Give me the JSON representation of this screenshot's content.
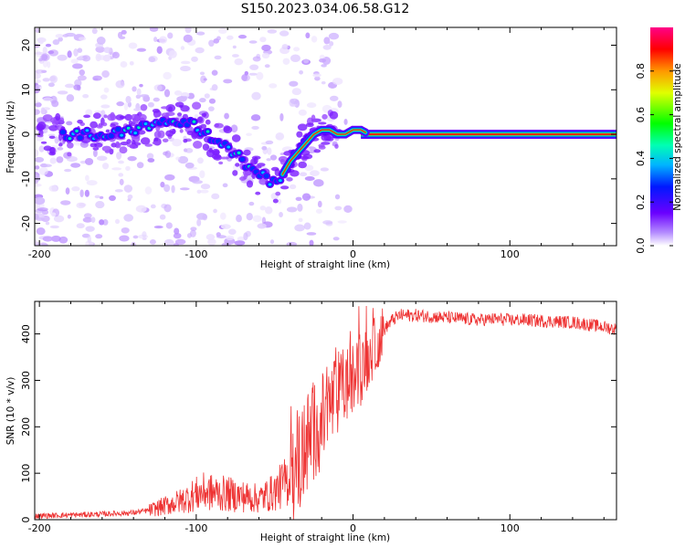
{
  "title": "S150.2023.034.06.58.G12",
  "chart_data": [
    {
      "type": "heatmap",
      "name": "spectrogram",
      "title": "S150.2023.034.06.58.G12",
      "xlabel": "Height of straight line (km)",
      "ylabel": "Frequency (Hz)",
      "xlim": [
        -203,
        168
      ],
      "ylim": [
        -25,
        24
      ],
      "xticks": [
        -200,
        -100,
        0,
        100
      ],
      "yticks": [
        -20,
        -10,
        0,
        10,
        20
      ],
      "colorbar": {
        "label": "Normalized spectral amplitude",
        "range": [
          0,
          1
        ],
        "ticks": [
          "0.0",
          "0.2",
          "0.4",
          "0.6",
          "0.8"
        ]
      },
      "ridge": {
        "x": [
          -180,
          -160,
          -140,
          -120,
          -100,
          -90,
          -80,
          -70,
          -60,
          -50,
          -45,
          -40,
          -35,
          -30,
          -25,
          -20,
          -15,
          -10,
          -5,
          0,
          5,
          10,
          168
        ],
        "y": [
          0,
          0,
          1,
          3,
          2,
          -1,
          -3,
          -6,
          -9,
          -11,
          -9,
          -6,
          -4,
          -2,
          0,
          1,
          1,
          0,
          0,
          1,
          1,
          0,
          0
        ]
      }
    },
    {
      "type": "line",
      "name": "snr",
      "xlabel": "Height of straight line (km)",
      "ylabel": "SNR (10 * v/v)",
      "xlim": [
        -203,
        168
      ],
      "ylim": [
        0,
        470
      ],
      "xticks": [
        -200,
        -100,
        0,
        100
      ],
      "yticks": [
        0,
        100,
        200,
        300,
        400
      ],
      "series": [
        {
          "name": "SNR",
          "color": "#ee3333",
          "x": [
            -203,
            -180,
            -160,
            -140,
            -130,
            -120,
            -110,
            -100,
            -95,
            -80,
            -70,
            -60,
            -50,
            -40,
            -35,
            -30,
            -25,
            -20,
            -15,
            -10,
            -5,
            0,
            5,
            10,
            15,
            20,
            25,
            30,
            40,
            60,
            80,
            90,
            100,
            110,
            120,
            140,
            150,
            160,
            168
          ],
          "y": [
            8,
            10,
            12,
            15,
            20,
            30,
            40,
            55,
            60,
            55,
            50,
            45,
            60,
            90,
            120,
            160,
            190,
            210,
            240,
            270,
            290,
            300,
            320,
            350,
            380,
            410,
            430,
            440,
            440,
            435,
            430,
            432,
            430,
            430,
            428,
            425,
            420,
            415,
            410
          ]
        }
      ]
    }
  ]
}
